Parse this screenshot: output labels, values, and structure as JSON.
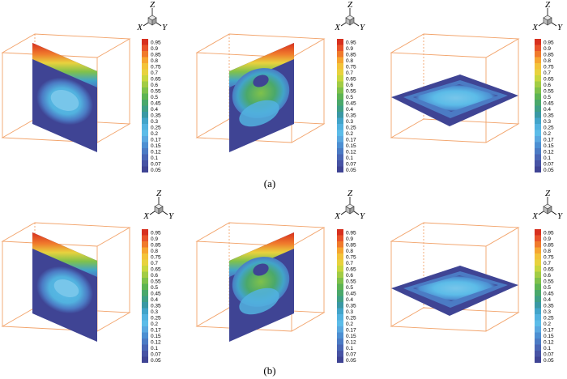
{
  "axis_labels": {
    "x": "X",
    "y": "Y",
    "z": "Z"
  },
  "rows": [
    {
      "caption": "(a)",
      "panels": [
        "vertical-slice-x",
        "vertical-slice-y",
        "horizontal-slice"
      ]
    },
    {
      "caption": "(b)",
      "panels": [
        "vertical-slice-x",
        "vertical-slice-y",
        "horizontal-slice"
      ]
    }
  ],
  "legend_levels": [
    "0.95",
    "0.9",
    "0.85",
    "0.8",
    "0.75",
    "0.7",
    "0.65",
    "0.6",
    "0.55",
    "0.5",
    "0.45",
    "0.4",
    "0.35",
    "0.3",
    "0.25",
    "0.2",
    "0.17",
    "0.15",
    "0.12",
    "0.1",
    "0.07",
    "0.05"
  ],
  "legend_colors": [
    "#d7301f",
    "#e8532a",
    "#f07a2c",
    "#f6a531",
    "#f3c33a",
    "#e8d23e",
    "#c9d73f",
    "#a2cc45",
    "#7fc14b",
    "#5db453",
    "#4aa86b",
    "#3f9f86",
    "#3a98a4",
    "#42a4c9",
    "#52b2df",
    "#5cbce8",
    "#5aa8e0",
    "#4d8fd2",
    "#4b7bc4",
    "#4966b4",
    "#4753a4",
    "#3f4494"
  ],
  "colors": {
    "box": "#f2a36a",
    "field_base": "#3f4494",
    "field_low": "#4b7bc4",
    "field_mid": "#5cbce8",
    "field_hot": "#d7301f"
  }
}
